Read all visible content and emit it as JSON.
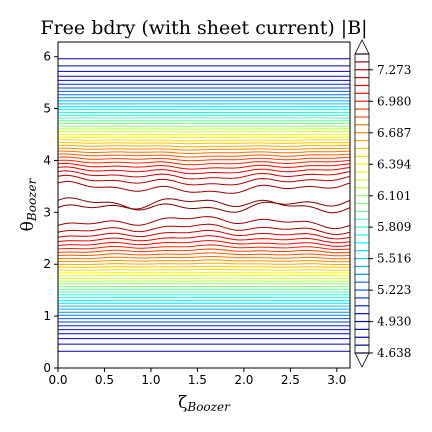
{
  "chart_data": {
    "type": "contour",
    "title": "Free bdry (with sheet current) |B|",
    "xlabel": "ζ",
    "xlabel_sub": "Boozer",
    "ylabel": "θ",
    "ylabel_sub": "Boozer",
    "xlim": [
      0,
      3.1416
    ],
    "ylim": [
      0,
      6.2832
    ],
    "xticks": [
      0.0,
      0.5,
      1.0,
      1.5,
      2.0,
      2.5,
      3.0
    ],
    "xtick_labels": [
      "0.0",
      "0.5",
      "1.0",
      "1.5",
      "2.0",
      "2.5",
      "3.0"
    ],
    "yticks": [
      0,
      1,
      2,
      3,
      4,
      5,
      6
    ],
    "ytick_labels": [
      "0",
      "1",
      "2",
      "3",
      "4",
      "5",
      "6"
    ],
    "colormap": "jet",
    "level_min": 4.638,
    "level_max": 7.42,
    "level_count": 39,
    "colorbar_ticks": [
      7.273,
      6.98,
      6.687,
      6.394,
      6.101,
      5.809,
      5.516,
      5.223,
      4.93,
      4.638
    ],
    "colorbar_tick_labels": [
      "7.273",
      "6.980",
      "6.687",
      "6.394",
      "6.101",
      "5.809",
      "5.516",
      "5.223",
      "4.930",
      "4.638"
    ],
    "colorbar_extend": "both",
    "grid": false,
    "field_model": "B(θ) ≈ 6.03 − 1.39·cos θ, with small ζ-dependent ripple near the maximum (θ ≈ 2.4–3.9)"
  }
}
